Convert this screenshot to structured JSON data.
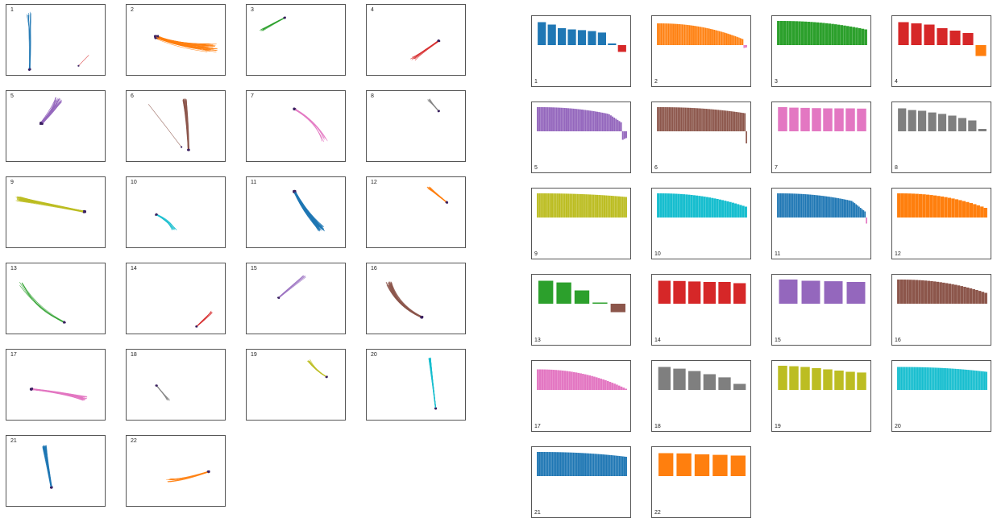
{
  "colors": [
    "#1f77b4",
    "#ff7f0e",
    "#2ca02c",
    "#d62728",
    "#9467bd",
    "#8c564b",
    "#e377c2",
    "#7f7f7f",
    "#bcbd22",
    "#17becf"
  ],
  "chart_data": [
    {
      "type": "trajectory",
      "panels": [
        {
          "label": "1",
          "color": "#1f77b4",
          "count": 9,
          "start": [
            0.22,
            0.12
          ],
          "end": [
            0.23,
            0.9
          ],
          "spread": 0.06,
          "curve": 0.02,
          "extra": {
            "color": "#d62728",
            "start": [
              0.82,
              0.7
            ],
            "end": [
              0.72,
              0.85
            ]
          }
        },
        {
          "label": "2",
          "color": "#ff7f0e",
          "count": 40,
          "start": [
            0.85,
            0.6
          ],
          "end": [
            0.3,
            0.45
          ],
          "spread": 0.12,
          "curve": -0.05
        },
        {
          "label": "3",
          "color": "#2ca02c",
          "count": 10,
          "start": [
            0.15,
            0.35
          ],
          "end": [
            0.38,
            0.18
          ],
          "spread": 0.04,
          "curve": 0.01
        },
        {
          "label": "4",
          "color": "#d62728",
          "count": 8,
          "start": [
            0.46,
            0.75
          ],
          "end": [
            0.72,
            0.5
          ],
          "spread": 0.05,
          "curve": -0.06
        },
        {
          "label": "5",
          "color": "#9467bd",
          "count": 30,
          "start": [
            0.52,
            0.12
          ],
          "end": [
            0.35,
            0.45
          ],
          "spread": 0.08,
          "curve": 0.04
        },
        {
          "label": "6",
          "color": "#8c564b",
          "count": 25,
          "start": [
            0.58,
            0.12
          ],
          "end": [
            0.62,
            0.82
          ],
          "spread": 0.04,
          "curve": 0.01,
          "extra": {
            "color": "#8c564b",
            "start": [
              0.22,
              0.18
            ],
            "end": [
              0.55,
              0.78
            ]
          }
        },
        {
          "label": "7",
          "color": "#e377c2",
          "count": 10,
          "start": [
            0.78,
            0.68
          ],
          "end": [
            0.48,
            0.25
          ],
          "spread": 0.06,
          "curve": 0.05
        },
        {
          "label": "8",
          "color": "#7f7f7f",
          "count": 8,
          "start": [
            0.62,
            0.12
          ],
          "end": [
            0.72,
            0.28
          ],
          "spread": 0.03,
          "curve": 0.0
        },
        {
          "label": "9",
          "color": "#bcbd22",
          "count": 45,
          "start": [
            0.12,
            0.3
          ],
          "end": [
            0.78,
            0.48
          ],
          "spread": 0.06,
          "curve": 0.0
        },
        {
          "label": "10",
          "color": "#17becf",
          "count": 12,
          "start": [
            0.48,
            0.72
          ],
          "end": [
            0.3,
            0.52
          ],
          "spread": 0.05,
          "curve": 0.02
        },
        {
          "label": "11",
          "color": "#1f77b4",
          "count": 45,
          "start": [
            0.75,
            0.72
          ],
          "end": [
            0.48,
            0.2
          ],
          "spread": 0.07,
          "curve": -0.03
        },
        {
          "label": "12",
          "color": "#ff7f0e",
          "count": 20,
          "start": [
            0.62,
            0.15
          ],
          "end": [
            0.8,
            0.35
          ],
          "spread": 0.04,
          "curve": 0.0
        },
        {
          "label": "13",
          "color": "#2ca02c",
          "count": 6,
          "start": [
            0.15,
            0.28
          ],
          "end": [
            0.58,
            0.82
          ],
          "spread": 0.06,
          "curve": -0.08
        },
        {
          "label": "14",
          "color": "#d62728",
          "count": 6,
          "start": [
            0.85,
            0.68
          ],
          "end": [
            0.7,
            0.88
          ],
          "spread": 0.04,
          "curve": 0.02
        },
        {
          "label": "15",
          "color": "#9467bd",
          "count": 6,
          "start": [
            0.58,
            0.18
          ],
          "end": [
            0.32,
            0.48
          ],
          "spread": 0.03,
          "curve": -0.05
        },
        {
          "label": "16",
          "color": "#8c564b",
          "count": 30,
          "start": [
            0.22,
            0.28
          ],
          "end": [
            0.55,
            0.75
          ],
          "spread": 0.06,
          "curve": -0.08
        },
        {
          "label": "17",
          "color": "#e377c2",
          "count": 30,
          "start": [
            0.78,
            0.68
          ],
          "end": [
            0.25,
            0.55
          ],
          "spread": 0.06,
          "curve": 0.02
        },
        {
          "label": "18",
          "color": "#7f7f7f",
          "count": 6,
          "start": [
            0.42,
            0.7
          ],
          "end": [
            0.3,
            0.5
          ],
          "spread": 0.03,
          "curve": 0.0
        },
        {
          "label": "19",
          "color": "#bcbd22",
          "count": 10,
          "start": [
            0.62,
            0.15
          ],
          "end": [
            0.8,
            0.38
          ],
          "spread": 0.03,
          "curve": -0.02
        },
        {
          "label": "20",
          "color": "#17becf",
          "count": 30,
          "start": [
            0.63,
            0.12
          ],
          "end": [
            0.69,
            0.82
          ],
          "spread": 0.02,
          "curve": 0.0
        },
        {
          "label": "21",
          "color": "#1f77b4",
          "count": 40,
          "start": [
            0.38,
            0.15
          ],
          "end": [
            0.45,
            0.72
          ],
          "spread": 0.04,
          "curve": 0.0
        },
        {
          "label": "22",
          "color": "#ff7f0e",
          "count": 10,
          "start": [
            0.42,
            0.62
          ],
          "end": [
            0.82,
            0.5
          ],
          "spread": 0.05,
          "curve": -0.06
        }
      ]
    },
    {
      "type": "bar",
      "panels": [
        {
          "label": "1",
          "color": "#1f77b4",
          "values": [
            0.95,
            0.85,
            0.7,
            0.65,
            0.62,
            0.58,
            0.52,
            0.07
          ],
          "neg": {
            "color": "#d62728",
            "value": -0.28
          }
        },
        {
          "label": "2",
          "color": "#ff7f0e",
          "n": 70,
          "high": 0.9,
          "low": 0.25,
          "neg": {
            "color": "#e377c2",
            "value": -0.12,
            "n": 3
          }
        },
        {
          "label": "3",
          "color": "#2ca02c",
          "n": 30,
          "high": 1.0,
          "low": 0.65
        },
        {
          "label": "4",
          "color": "#d62728",
          "values": [
            0.95,
            0.9,
            0.85,
            0.7,
            0.6,
            0.5
          ],
          "neg": {
            "color": "#ff7f0e",
            "value": -0.45
          }
        },
        {
          "label": "5",
          "color": "#9467bd",
          "n": 50,
          "high": 1.0,
          "low": 0.6,
          "drop": 0.15,
          "neg": {
            "color": "#9467bd",
            "value": -0.35,
            "n": 3
          }
        },
        {
          "label": "6",
          "color": "#8c564b",
          "n": 60,
          "high": 1.0,
          "low": 0.75,
          "neg": {
            "color": "#8c564b",
            "value": -0.5,
            "n": 1
          }
        },
        {
          "label": "7",
          "color": "#e377c2",
          "values": [
            1.0,
            0.98,
            0.97,
            0.96,
            0.95,
            0.95,
            0.95,
            0.94
          ]
        },
        {
          "label": "8",
          "color": "#7f7f7f",
          "values": [
            0.95,
            0.88,
            0.85,
            0.78,
            0.72,
            0.65,
            0.55,
            0.45,
            0.1
          ]
        },
        {
          "label": "9",
          "color": "#bcbd22",
          "n": 50,
          "high": 1.0,
          "low": 0.85
        },
        {
          "label": "10",
          "color": "#17becf",
          "n": 35,
          "high": 1.0,
          "low": 0.45
        },
        {
          "label": "11",
          "color": "#1f77b4",
          "n": 60,
          "high": 1.0,
          "low": 0.55,
          "drop": 0.2,
          "neg": {
            "color": "#e377c2",
            "value": -0.25,
            "n": 1
          }
        },
        {
          "label": "12",
          "color": "#ff7f0e",
          "n": 25,
          "high": 1.0,
          "low": 0.4
        },
        {
          "label": "13",
          "color": "#2ca02c",
          "values": [
            0.95,
            0.88,
            0.55,
            0.05
          ],
          "neg": {
            "color": "#8c564b",
            "value": -0.35
          },
          "negAt": [
            3
          ]
        },
        {
          "label": "14",
          "color": "#d62728",
          "values": [
            0.95,
            0.94,
            0.92,
            0.9,
            0.9,
            0.85
          ]
        },
        {
          "label": "15",
          "color": "#9467bd",
          "values": [
            1.0,
            0.95,
            0.93,
            0.9
          ]
        },
        {
          "label": "16",
          "color": "#8c564b",
          "n": 30,
          "high": 1.0,
          "low": 0.45
        },
        {
          "label": "17",
          "color": "#e377c2",
          "n": 40,
          "high": 0.85,
          "low": 0.05
        },
        {
          "label": "18",
          "color": "#7f7f7f",
          "values": [
            0.95,
            0.88,
            0.78,
            0.65,
            0.52,
            0.25
          ]
        },
        {
          "label": "19",
          "color": "#bcbd22",
          "values": [
            1.0,
            0.98,
            0.95,
            0.9,
            0.85,
            0.8,
            0.75,
            0.72
          ]
        },
        {
          "label": "20",
          "color": "#17becf",
          "n": 55,
          "high": 0.95,
          "low": 0.75
        },
        {
          "label": "21",
          "color": "#1f77b4",
          "n": 55,
          "high": 1.0,
          "low": 0.8
        },
        {
          "label": "22",
          "color": "#ff7f0e",
          "values": [
            0.95,
            0.94,
            0.9,
            0.88,
            0.85
          ]
        }
      ]
    }
  ]
}
